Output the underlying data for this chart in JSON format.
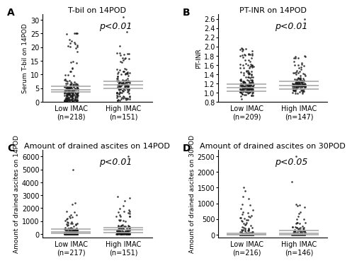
{
  "panels": [
    {
      "label": "A",
      "title": "T-bil on 14POD",
      "ylabel": "Serum T-bil on 14POD",
      "pvalue": "p<0.01",
      "groups": [
        "Low IMAC",
        "High IMAC"
      ],
      "ns": [
        218,
        151
      ],
      "ylim": [
        0,
        32
      ],
      "yticks": [
        0,
        5,
        10,
        15,
        20,
        25,
        30
      ],
      "median_low": 4.3,
      "q1_low": 3.5,
      "q3_low": 5.7,
      "median_high": 6.3,
      "q1_high": 4.8,
      "q3_high": 7.5
    },
    {
      "label": "B",
      "title": "PT-INR on 14POD",
      "ylabel": "PT-INR",
      "pvalue": "p<0.01",
      "groups": [
        "Low IMAC",
        "High IMAC"
      ],
      "ns": [
        209,
        147
      ],
      "ylim": [
        0.8,
        2.7
      ],
      "yticks": [
        0.8,
        1.0,
        1.2,
        1.4,
        1.6,
        1.8,
        2.0,
        2.2,
        2.4,
        2.6
      ],
      "median_low": 1.1,
      "q1_low": 1.03,
      "q3_low": 1.18,
      "median_high": 1.15,
      "q1_high": 1.08,
      "q3_high": 1.25
    },
    {
      "label": "C",
      "title": "Amount of drained ascites on 14POD",
      "ylabel": "Amount of drained ascites on 14POD",
      "pvalue": "p<0.01",
      "groups": [
        "Low IMAC",
        "High IMAC"
      ],
      "ns": [
        217,
        151
      ],
      "ylim": [
        -300,
        6500
      ],
      "yticks": [
        0,
        1000,
        2000,
        3000,
        4000,
        5000,
        6000
      ],
      "median_low": 175,
      "q1_low": 50,
      "q3_low": 380,
      "median_high": 300,
      "q1_high": 100,
      "q3_high": 500
    },
    {
      "label": "D",
      "title": "Amount of drained ascites on 30POD",
      "ylabel": "Amount of drained ascites on 30POD",
      "pvalue": "p<0.05",
      "groups": [
        "Low IMAC",
        "High IMAC"
      ],
      "ns": [
        216,
        146
      ],
      "ylim": [
        -100,
        2700
      ],
      "yticks": [
        0,
        500,
        1000,
        1500,
        2000,
        2500
      ],
      "median_low": 0,
      "q1_low": 0,
      "q3_low": 30,
      "median_high": 30,
      "q1_high": 0,
      "q3_high": 120
    }
  ],
  "dot_color": "#1a1a1a",
  "dot_size": 3.5,
  "dot_alpha": 0.85,
  "line_color": "#aaaaaa",
  "line_width": 1.2,
  "background_color": "#ffffff",
  "label_fontsize": 10,
  "title_fontsize": 8,
  "tick_fontsize": 7,
  "ylabel_fontsize": 6.5,
  "pvalue_fontsize": 9
}
